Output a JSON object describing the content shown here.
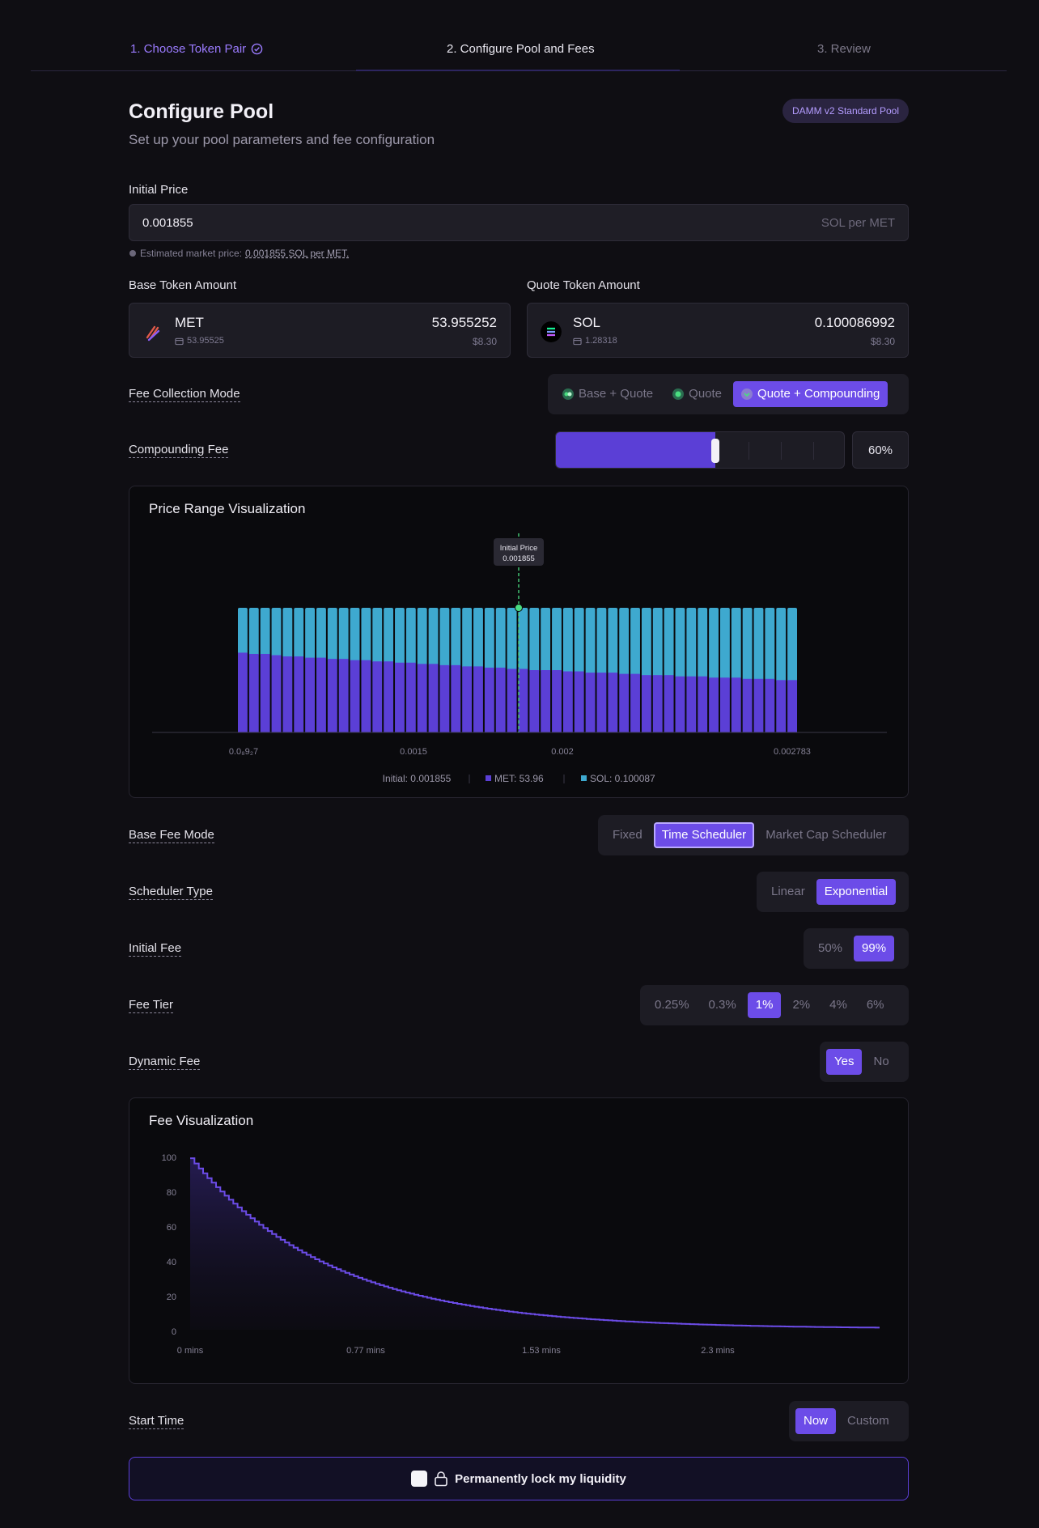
{
  "steps": {
    "step1": "1. Choose Token Pair",
    "step2": "2. Configure Pool and Fees",
    "step3": "3. Review"
  },
  "header": {
    "title": "Configure Pool",
    "subtitle": "Set up your pool parameters and fee configuration",
    "badge": "DAMM v2 Standard Pool"
  },
  "initial_price": {
    "label": "Initial Price",
    "value": "0.001855",
    "unit": "SOL per MET",
    "hint_prefix": "Estimated market price:",
    "hint_value": "0.001855 SOL per MET."
  },
  "base_token": {
    "label": "Base Token Amount",
    "symbol": "MET",
    "balance": "53.95525",
    "amount": "53.955252",
    "usd": "$8.30"
  },
  "quote_token": {
    "label": "Quote Token Amount",
    "symbol": "SOL",
    "balance": "1.28318",
    "amount": "0.100086992",
    "usd": "$8.30"
  },
  "fee_collection": {
    "label": "Fee Collection Mode",
    "options": [
      "Base + Quote",
      "Quote",
      "Quote + Compounding"
    ],
    "selected": "Quote + Compounding"
  },
  "compounding_fee": {
    "label": "Compounding Fee",
    "value": "60%",
    "level": 0.6
  },
  "price_range": {
    "title": "Price Range Visualization",
    "tooltip_title": "Initial Price",
    "tooltip_value": "0.001855",
    "x_ticks": [
      "0.0₈9₂7",
      "0.0015",
      "0.002",
      "0.002783"
    ],
    "legend": {
      "initial": "Initial: 0.001855",
      "met": "MET: 53.96",
      "sol": "SOL: 0.100087"
    }
  },
  "chart_data": [
    {
      "type": "bar",
      "title": "Price Range Visualization",
      "note_bars": 50,
      "x_ticks": [
        "0.0₈9₂7",
        "0.0015",
        "0.002",
        "0.002783"
      ],
      "initial_price": 0.001855,
      "series": [
        {
          "name": "MET",
          "values_fraction_of_bar": [
            0.64,
            0.63,
            0.63,
            0.62,
            0.61,
            0.61,
            0.6,
            0.6,
            0.59,
            0.59,
            0.58,
            0.58,
            0.57,
            0.57,
            0.56,
            0.56,
            0.55,
            0.55,
            0.54,
            0.54,
            0.53,
            0.53,
            0.52,
            0.52,
            0.51,
            0.51,
            0.5,
            0.5,
            0.5,
            0.49,
            0.49,
            0.48,
            0.48,
            0.48,
            0.47,
            0.47,
            0.46,
            0.46,
            0.46,
            0.45,
            0.45,
            0.45,
            0.44,
            0.44,
            0.44,
            0.43,
            0.43,
            0.43,
            0.42,
            0.42
          ]
        },
        {
          "name": "SOL",
          "values_fraction_of_bar": "remainder"
        }
      ],
      "colors": {
        "MET": "#5b3fd6",
        "SOL": "#3ea9cf",
        "initial_line": "#4ade80"
      }
    },
    {
      "type": "area",
      "title": "Fee Visualization",
      "x_ticks": [
        "0 mins",
        "0.77 mins",
        "1.53 mins",
        "2.3 mins"
      ],
      "y_ticks": [
        "0",
        "20",
        "40",
        "60",
        "80",
        "100"
      ],
      "ylim": [
        0,
        100
      ],
      "x_max_mins": 3.0,
      "start_fee": 99,
      "end_fee": 0.5,
      "decay": "exponential",
      "color": "#6c4ce8"
    }
  ],
  "base_fee_mode": {
    "label": "Base Fee Mode",
    "options": [
      "Fixed",
      "Time Scheduler",
      "Market Cap Scheduler"
    ],
    "selected": "Time Scheduler"
  },
  "scheduler_type": {
    "label": "Scheduler Type",
    "options": [
      "Linear",
      "Exponential"
    ],
    "selected": "Exponential"
  },
  "initial_fee": {
    "label": "Initial Fee",
    "options": [
      "50%",
      "99%"
    ],
    "selected": "99%"
  },
  "fee_tier": {
    "label": "Fee Tier",
    "options": [
      "0.25%",
      "0.3%",
      "1%",
      "2%",
      "4%",
      "6%"
    ],
    "selected": "1%"
  },
  "dynamic_fee": {
    "label": "Dynamic Fee",
    "options": [
      "Yes",
      "No"
    ],
    "selected": "Yes"
  },
  "fee_viz": {
    "title": "Fee Visualization",
    "x_ticks": [
      "0 mins",
      "0.77 mins",
      "1.53 mins",
      "2.3 mins"
    ],
    "y_ticks": [
      "100",
      "80",
      "60",
      "40",
      "20",
      "0"
    ]
  },
  "start_time": {
    "label": "Start Time",
    "options": [
      "Now",
      "Custom"
    ],
    "selected": "Now"
  },
  "lock": {
    "label": "Permanently lock my liquidity"
  }
}
